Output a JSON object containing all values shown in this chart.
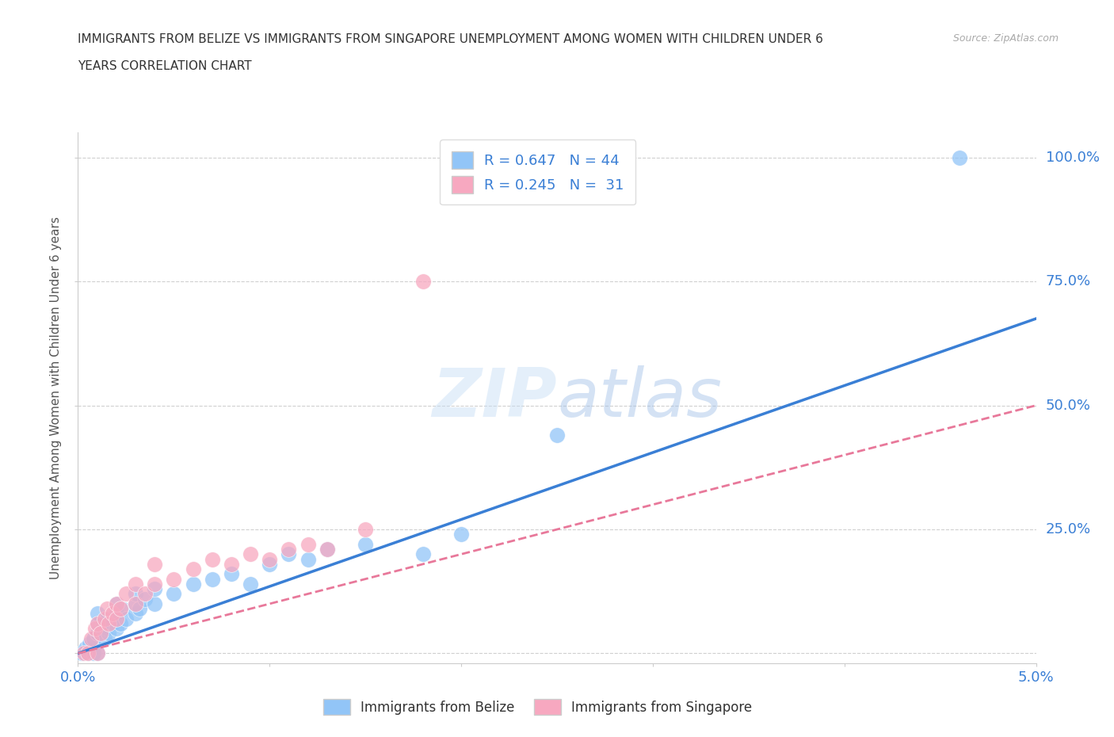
{
  "title_line1": "IMMIGRANTS FROM BELIZE VS IMMIGRANTS FROM SINGAPORE UNEMPLOYMENT AMONG WOMEN WITH CHILDREN UNDER 6",
  "title_line2": "YEARS CORRELATION CHART",
  "source": "Source: ZipAtlas.com",
  "ylabel": "Unemployment Among Women with Children Under 6 years",
  "xlim": [
    0.0,
    0.05
  ],
  "ylim": [
    -0.02,
    1.05
  ],
  "xticks": [
    0.0,
    0.01,
    0.02,
    0.03,
    0.04,
    0.05
  ],
  "xticklabels": [
    "0.0%",
    "",
    "",
    "",
    "",
    "5.0%"
  ],
  "ytick_positions": [
    0.0,
    0.25,
    0.5,
    0.75,
    1.0
  ],
  "yticklabels": [
    "",
    "25.0%",
    "50.0%",
    "75.0%",
    "100.0%"
  ],
  "belize_color": "#92c5f7",
  "singapore_color": "#f7a8c0",
  "legend_label_belize": "R = 0.647   N = 44",
  "legend_label_singapore": "R = 0.245   N =  31",
  "bottom_legend_belize": "Immigrants from Belize",
  "bottom_legend_singapore": "Immigrants from Singapore",
  "watermark_zip": "ZIP",
  "watermark_atlas": "atlas",
  "grid_color": "#d0d0d0",
  "regression_line_belize_color": "#3a7fd5",
  "regression_line_singapore_color": "#e8789a",
  "belize_reg_slope": 13.5,
  "belize_reg_intercept": 0.0,
  "singapore_reg_slope": 10.0,
  "singapore_reg_intercept": 0.0,
  "belize_x": [
    0.0002,
    0.0004,
    0.0005,
    0.0006,
    0.0008,
    0.0008,
    0.001,
    0.001,
    0.001,
    0.001,
    0.0012,
    0.0013,
    0.0014,
    0.0015,
    0.0015,
    0.0016,
    0.0018,
    0.002,
    0.002,
    0.002,
    0.0022,
    0.0023,
    0.0025,
    0.003,
    0.003,
    0.003,
    0.0032,
    0.0035,
    0.004,
    0.004,
    0.005,
    0.006,
    0.007,
    0.008,
    0.009,
    0.01,
    0.011,
    0.012,
    0.013,
    0.015,
    0.018,
    0.02,
    0.025,
    0.046
  ],
  "belize_y": [
    0.0,
    0.01,
    0.0,
    0.02,
    0.0,
    0.03,
    0.0,
    0.04,
    0.06,
    0.08,
    0.04,
    0.06,
    0.03,
    0.05,
    0.07,
    0.04,
    0.06,
    0.05,
    0.08,
    0.1,
    0.06,
    0.09,
    0.07,
    0.08,
    0.1,
    0.12,
    0.09,
    0.11,
    0.1,
    0.13,
    0.12,
    0.14,
    0.15,
    0.16,
    0.14,
    0.18,
    0.2,
    0.19,
    0.21,
    0.22,
    0.2,
    0.24,
    0.44,
    1.0
  ],
  "singapore_x": [
    0.0003,
    0.0005,
    0.0007,
    0.0009,
    0.001,
    0.001,
    0.0012,
    0.0014,
    0.0015,
    0.0016,
    0.0018,
    0.002,
    0.002,
    0.0022,
    0.0025,
    0.003,
    0.003,
    0.0035,
    0.004,
    0.004,
    0.005,
    0.006,
    0.007,
    0.008,
    0.009,
    0.01,
    0.011,
    0.012,
    0.013,
    0.015,
    0.018
  ],
  "singapore_y": [
    0.0,
    0.0,
    0.03,
    0.05,
    0.0,
    0.06,
    0.04,
    0.07,
    0.09,
    0.06,
    0.08,
    0.07,
    0.1,
    0.09,
    0.12,
    0.1,
    0.14,
    0.12,
    0.14,
    0.18,
    0.15,
    0.17,
    0.19,
    0.18,
    0.2,
    0.19,
    0.21,
    0.22,
    0.21,
    0.25,
    0.75
  ]
}
